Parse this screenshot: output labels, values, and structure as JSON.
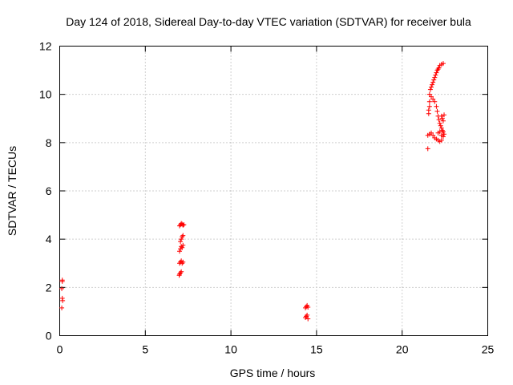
{
  "chart_data": {
    "type": "scatter",
    "title": "Day 124 of 2018, Sidereal Day-to-day VTEC variation (SDTVAR) for receiver bula",
    "xlabel": "GPS time / hours",
    "ylabel": "SDTVAR / TECUs",
    "xlim": [
      0,
      25
    ],
    "ylim": [
      0,
      12
    ],
    "xticks": [
      0,
      5,
      10,
      15,
      20,
      25
    ],
    "yticks": [
      0,
      2,
      4,
      6,
      8,
      10,
      12
    ],
    "grid": true,
    "marker": "+",
    "color": "#ff0000",
    "series": [
      {
        "name": "SDTVAR",
        "points": [
          [
            0.15,
            2.3
          ],
          [
            0.15,
            2.25
          ],
          [
            0.12,
            1.95
          ],
          [
            0.15,
            1.55
          ],
          [
            0.17,
            1.45
          ],
          [
            0.12,
            1.15
          ],
          [
            7.0,
            2.55
          ],
          [
            7.05,
            2.6
          ],
          [
            7.1,
            2.65
          ],
          [
            6.98,
            2.5
          ],
          [
            7.0,
            3.0
          ],
          [
            7.05,
            3.05
          ],
          [
            7.1,
            3.1
          ],
          [
            7.15,
            3.0
          ],
          [
            7.2,
            3.05
          ],
          [
            7.0,
            3.5
          ],
          [
            7.05,
            3.6
          ],
          [
            7.1,
            3.7
          ],
          [
            7.15,
            3.65
          ],
          [
            7.2,
            3.75
          ],
          [
            7.05,
            3.9
          ],
          [
            7.1,
            4.0
          ],
          [
            7.15,
            4.1
          ],
          [
            7.2,
            4.15
          ],
          [
            7.0,
            4.55
          ],
          [
            7.05,
            4.6
          ],
          [
            7.1,
            4.65
          ],
          [
            7.15,
            4.62
          ],
          [
            7.2,
            4.58
          ],
          [
            7.25,
            4.6
          ],
          [
            14.35,
            0.75
          ],
          [
            14.4,
            0.8
          ],
          [
            14.45,
            0.85
          ],
          [
            14.5,
            0.7
          ],
          [
            14.35,
            1.15
          ],
          [
            14.4,
            1.2
          ],
          [
            14.45,
            1.25
          ],
          [
            14.5,
            1.18
          ],
          [
            21.5,
            7.75
          ],
          [
            21.5,
            8.3
          ],
          [
            21.6,
            8.35
          ],
          [
            21.7,
            8.4
          ],
          [
            21.8,
            8.3
          ],
          [
            21.9,
            8.2
          ],
          [
            21.55,
            9.2
          ],
          [
            21.55,
            9.35
          ],
          [
            21.6,
            9.5
          ],
          [
            21.6,
            9.7
          ],
          [
            21.6,
            10.0
          ],
          [
            21.65,
            10.2
          ],
          [
            21.7,
            10.3
          ],
          [
            21.75,
            10.4
          ],
          [
            21.8,
            10.5
          ],
          [
            21.85,
            10.6
          ],
          [
            21.9,
            10.7
          ],
          [
            21.95,
            10.8
          ],
          [
            22.0,
            10.9
          ],
          [
            22.05,
            11.0
          ],
          [
            22.1,
            11.05
          ],
          [
            22.15,
            11.1
          ],
          [
            22.2,
            11.2
          ],
          [
            22.3,
            11.25
          ],
          [
            22.4,
            11.28
          ],
          [
            21.7,
            9.9
          ],
          [
            21.8,
            9.8
          ],
          [
            21.9,
            9.7
          ],
          [
            22.0,
            9.5
          ],
          [
            22.05,
            9.3
          ],
          [
            22.1,
            9.1
          ],
          [
            22.15,
            8.95
          ],
          [
            22.2,
            8.8
          ],
          [
            22.25,
            8.7
          ],
          [
            22.3,
            8.6
          ],
          [
            22.35,
            8.5
          ],
          [
            22.4,
            8.45
          ],
          [
            22.3,
            9.1
          ],
          [
            22.35,
            9.0
          ],
          [
            22.4,
            8.9
          ],
          [
            22.45,
            9.15
          ],
          [
            22.3,
            8.3
          ],
          [
            22.4,
            8.25
          ],
          [
            22.45,
            8.35
          ],
          [
            22.0,
            8.15
          ],
          [
            22.1,
            8.1
          ],
          [
            22.2,
            8.05
          ],
          [
            22.3,
            8.1
          ],
          [
            22.1,
            8.4
          ],
          [
            22.2,
            8.45
          ]
        ]
      }
    ]
  }
}
